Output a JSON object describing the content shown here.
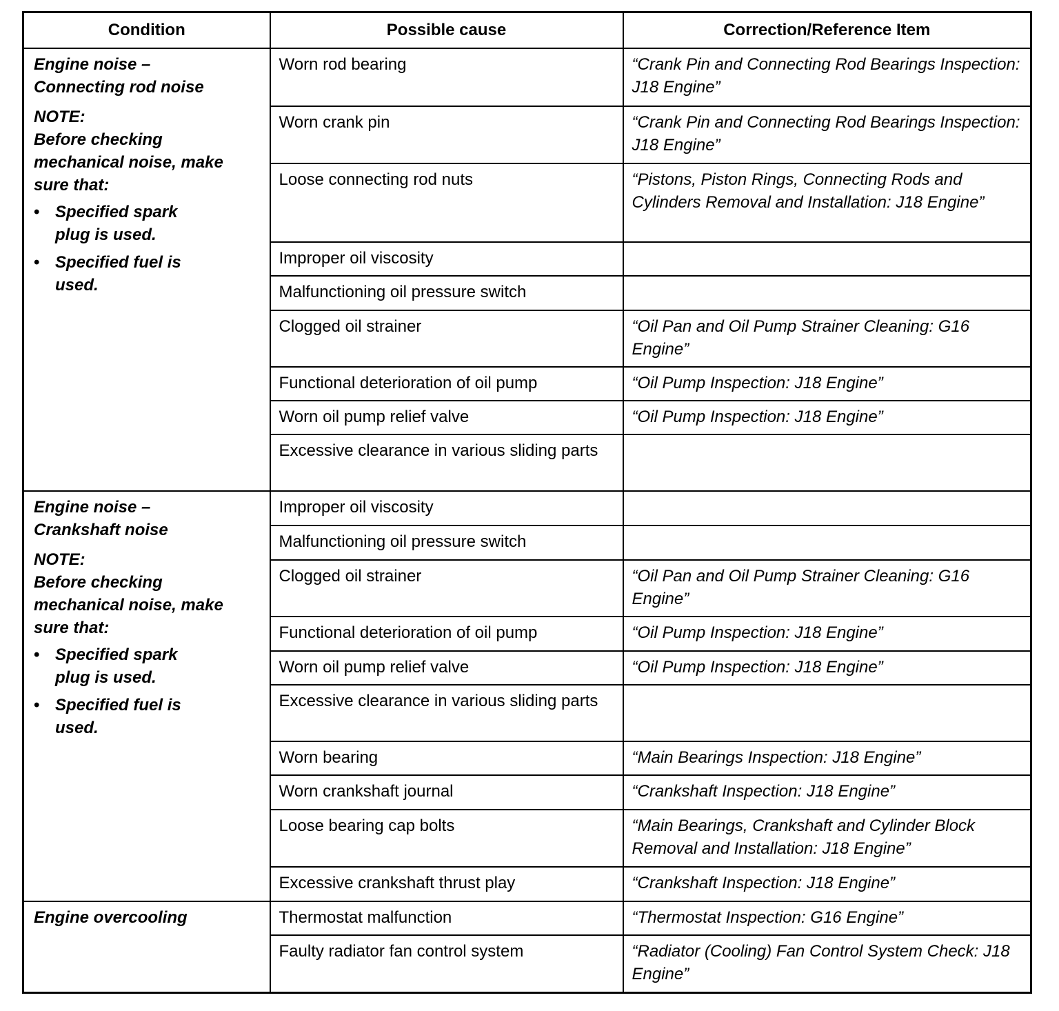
{
  "headers": [
    "Condition",
    "Possible cause",
    "Correction/Reference Item"
  ],
  "groups": [
    {
      "condition": "Engine noise – Connecting rod noise",
      "note_label": "NOTE:",
      "note_text": "Before checking mechanical noise, make sure that:",
      "bullets": [
        "Specified spark plug is used.",
        "Specified fuel is used."
      ],
      "rows": [
        {
          "cause": "Worn rod bearing",
          "ref": "“Crank Pin and Connecting Rod Bearings Inspection: J18 Engine”"
        },
        {
          "cause": "Worn crank pin",
          "ref": "“Crank Pin and Connecting Rod Bearings Inspection: J18 Engine”"
        },
        {
          "cause": "Loose connecting rod nuts",
          "ref": "“Pistons, Piston Rings, Connecting Rods and Cylinders Removal and Installation: J18 Engine”"
        },
        {
          "cause": "Improper oil viscosity",
          "ref": ""
        },
        {
          "cause": "Malfunctioning oil pressure switch",
          "ref": ""
        },
        {
          "cause": "Clogged oil strainer",
          "ref": "“Oil Pan and Oil Pump Strainer Cleaning: G16 Engine”"
        },
        {
          "cause": "Functional deterioration of oil pump",
          "ref": "“Oil Pump Inspection: J18 Engine”"
        },
        {
          "cause": "Worn oil pump relief valve",
          "ref": "“Oil Pump Inspection: J18 Engine”"
        },
        {
          "cause": "Excessive clearance in various sliding parts",
          "ref": ""
        }
      ]
    },
    {
      "condition": "Engine noise – Crankshaft noise",
      "note_label": "NOTE:",
      "note_text": "Before checking mechanical noise, make sure that:",
      "bullets": [
        "Specified spark plug is used.",
        "Specified fuel is used."
      ],
      "rows": [
        {
          "cause": "Improper oil viscosity",
          "ref": ""
        },
        {
          "cause": "Malfunctioning oil pressure switch",
          "ref": ""
        },
        {
          "cause": "Clogged oil strainer",
          "ref": "“Oil Pan and Oil Pump Strainer Cleaning: G16 Engine”"
        },
        {
          "cause": "Functional deterioration of oil pump",
          "ref": "“Oil Pump Inspection: J18 Engine”"
        },
        {
          "cause": "Worn oil pump relief valve",
          "ref": "“Oil Pump Inspection: J18 Engine”"
        },
        {
          "cause": "Excessive clearance in various sliding parts",
          "ref": ""
        },
        {
          "cause": "Worn bearing",
          "ref": "“Main Bearings Inspection: J18 Engine”"
        },
        {
          "cause": "Worn crankshaft journal",
          "ref": "“Crankshaft Inspection: J18 Engine”"
        },
        {
          "cause": "Loose bearing cap bolts",
          "ref": "“Main Bearings, Crankshaft and Cylinder Block Removal and Installation: J18 Engine”"
        },
        {
          "cause": "Excessive crankshaft thrust play",
          "ref": "“Crankshaft Inspection: J18 Engine”"
        }
      ]
    },
    {
      "condition": "Engine overcooling",
      "rows": [
        {
          "cause": "Thermostat malfunction",
          "ref": "“Thermostat Inspection: G16 Engine”"
        },
        {
          "cause": "Faulty radiator fan control system",
          "ref": "“Radiator (Cooling) Fan Control System Check: J18 Engine”"
        }
      ]
    }
  ]
}
